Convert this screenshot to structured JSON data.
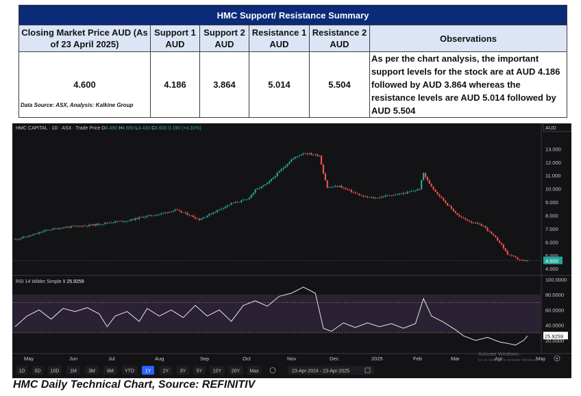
{
  "table": {
    "title": "HMC Support/  Resistance Summary",
    "headers": [
      "Closing Market Price AUD (As of 23 April 2025)",
      "Support 1 AUD",
      "Support 2 AUD",
      "Resistance 1 AUD",
      "Resistance 2 AUD",
      "Observations"
    ],
    "values": [
      "4.600",
      "4.186",
      "3.864",
      "5.014",
      "5.504"
    ],
    "observation": "As per the chart analysis, the important support levels for the stock are at AUD 4.186 followed by AUD 3.864 whereas the resistance levels are AUD 5.014 followed by AUD 5.504"
  },
  "source_note": "Data Source: ASX, Analysis: Kalkine Group",
  "caption": "HMC Daily Technical Chart, Source: REFINITIV",
  "chart_data": {
    "type": "candlestick",
    "header": {
      "symbol": "HMC CAPITAL · 1D · ASX · Trade Price",
      "o_label": "O",
      "o_value": "4.490",
      "h_label": "H",
      "h_value": "4.660",
      "l_label": "L",
      "l_value": "4.430",
      "c_label": "C",
      "c_value": "4.600",
      "change": "0.190 (+4.31%)"
    },
    "currency": "AUD",
    "price_ticks": [
      "13.000",
      "12.000",
      "11.000",
      "10.000",
      "9.000",
      "8.000",
      "7.000",
      "6.000",
      "5.000",
      "4.000"
    ],
    "price_range": [
      3.6,
      14.2
    ],
    "last_price": "4.600",
    "x_labels": [
      "May",
      "Jun",
      "Jul",
      "Aug",
      "Sep",
      "Oct",
      "Nov",
      "Dec",
      "2025",
      "Feb",
      "Mar",
      "Apr",
      "May"
    ],
    "price_path": [
      [
        0,
        6.2
      ],
      [
        8,
        6.5
      ],
      [
        16,
        6.9
      ],
      [
        24,
        7.1
      ],
      [
        32,
        7.2
      ],
      [
        40,
        7.3
      ],
      [
        48,
        7.5
      ],
      [
        56,
        7.6
      ],
      [
        64,
        7.9
      ],
      [
        72,
        8.1
      ],
      [
        80,
        8.4
      ],
      [
        86,
        8.1
      ],
      [
        92,
        7.7
      ],
      [
        100,
        8.3
      ],
      [
        108,
        8.9
      ],
      [
        116,
        9.2
      ],
      [
        120,
        9.9
      ],
      [
        126,
        10.4
      ],
      [
        132,
        11.3
      ],
      [
        138,
        12.2
      ],
      [
        144,
        12.7
      ],
      [
        148,
        12.6
      ],
      [
        152,
        12.5
      ],
      [
        154,
        11.2
      ],
      [
        156,
        10.1
      ],
      [
        162,
        10.2
      ],
      [
        168,
        9.8
      ],
      [
        174,
        9.4
      ],
      [
        180,
        9.3
      ],
      [
        186,
        9.5
      ],
      [
        192,
        9.6
      ],
      [
        198,
        9.8
      ],
      [
        202,
        10.0
      ],
      [
        204,
        11.2
      ],
      [
        206,
        10.6
      ],
      [
        210,
        9.8
      ],
      [
        216,
        8.8
      ],
      [
        222,
        7.9
      ],
      [
        228,
        7.5
      ],
      [
        234,
        7.2
      ],
      [
        238,
        6.6
      ],
      [
        242,
        6.0
      ],
      [
        246,
        5.1
      ],
      [
        250,
        4.8
      ],
      [
        254,
        4.55
      ],
      [
        256,
        4.6
      ]
    ],
    "rsi": {
      "label": "RSI 14 Wilder Simple 9",
      "value": "25.9259",
      "ticks": [
        "100.0000",
        "80.0000",
        "60.0000",
        "40.0000",
        "20.0000"
      ],
      "band": [
        30,
        70
      ],
      "path": [
        [
          0,
          38
        ],
        [
          6,
          52
        ],
        [
          12,
          60
        ],
        [
          18,
          48
        ],
        [
          24,
          62
        ],
        [
          30,
          58
        ],
        [
          36,
          63
        ],
        [
          42,
          55
        ],
        [
          46,
          38
        ],
        [
          50,
          52
        ],
        [
          56,
          58
        ],
        [
          62,
          45
        ],
        [
          66,
          62
        ],
        [
          72,
          52
        ],
        [
          78,
          60
        ],
        [
          84,
          50
        ],
        [
          90,
          66
        ],
        [
          96,
          52
        ],
        [
          102,
          60
        ],
        [
          108,
          45
        ],
        [
          114,
          66
        ],
        [
          120,
          72
        ],
        [
          126,
          65
        ],
        [
          132,
          78
        ],
        [
          138,
          82
        ],
        [
          144,
          90
        ],
        [
          150,
          82
        ],
        [
          154,
          36
        ],
        [
          158,
          32
        ],
        [
          164,
          43
        ],
        [
          170,
          37
        ],
        [
          176,
          43
        ],
        [
          182,
          38
        ],
        [
          188,
          42
        ],
        [
          194,
          36
        ],
        [
          200,
          42
        ],
        [
          204,
          75
        ],
        [
          208,
          52
        ],
        [
          214,
          44
        ],
        [
          220,
          34
        ],
        [
          224,
          26
        ],
        [
          230,
          20
        ],
        [
          236,
          24
        ],
        [
          242,
          18
        ],
        [
          246,
          16
        ],
        [
          250,
          14
        ],
        [
          254,
          20
        ],
        [
          256,
          26
        ]
      ]
    },
    "range_buttons": [
      "1D",
      "5D",
      "10D",
      "1M",
      "3M",
      "6M",
      "YTD",
      "1Y",
      "2Y",
      "3Y",
      "5Y",
      "10Y",
      "20Y",
      "Max"
    ],
    "active_range": "1Y",
    "date_range": "23-Apr-2024 - 23-Apr-2025",
    "watermark": [
      "Activate Windows",
      "Go to Settings to activate Windows."
    ],
    "colors": {
      "up": "#26a69a",
      "down": "#ef5350",
      "background": "#131316",
      "rsi_band": "#2a2233",
      "rsi_line": "#e6e6e6",
      "accent": "#2962ff",
      "table_header": "#0b2a78",
      "table_subheader": "#dbe5f5"
    }
  }
}
